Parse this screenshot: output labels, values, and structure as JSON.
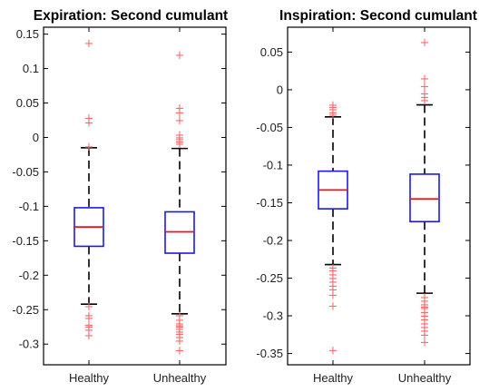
{
  "chart_data": [
    {
      "type": "boxplot",
      "title": "Expiration:  Second cumulant",
      "categories": [
        "Healthy",
        "Unhealthy"
      ],
      "ylim": [
        -0.33,
        0.16
      ],
      "yticks": [
        0.15,
        0.1,
        0.05,
        0,
        -0.05,
        -0.1,
        -0.15,
        -0.2,
        -0.25,
        -0.3
      ],
      "ytick_labels": [
        "0.15",
        "0.1",
        "0.05",
        "0",
        "-0.05",
        "-0.1",
        "-0.15",
        "-0.2",
        "-0.25",
        "-0.3"
      ],
      "grid": false,
      "boxes": [
        {
          "category": "Healthy",
          "whisker_high": -0.015,
          "q3": -0.102,
          "median": -0.13,
          "q1": -0.158,
          "whisker_low": -0.242,
          "outliers": [
            0.137,
            0.028,
            0.022,
            -0.013,
            -0.245,
            -0.258,
            -0.262,
            -0.272,
            -0.275,
            -0.279,
            -0.287
          ]
        },
        {
          "category": "Unhealthy",
          "whisker_high": -0.016,
          "q3": -0.108,
          "median": -0.137,
          "q1": -0.168,
          "whisker_low": -0.256,
          "outliers": [
            0.12,
            0.043,
            0.036,
            0.025,
            0.004,
            0.0,
            -0.003,
            -0.006,
            -0.009,
            -0.258,
            -0.265,
            -0.27,
            -0.273,
            -0.275,
            -0.278,
            -0.282,
            -0.285,
            -0.29,
            -0.295,
            -0.309
          ]
        }
      ],
      "colors": {
        "box": "#1a1ae6",
        "median": "#e8141e",
        "whisker": "#000000",
        "outlier": "#ff6b6b"
      }
    },
    {
      "type": "boxplot",
      "title": "Inspiration: Second cumulant",
      "categories": [
        "Healthy",
        "Unhealthy"
      ],
      "ylim": [
        -0.365,
        0.083
      ],
      "yticks": [
        0.05,
        0,
        -0.05,
        -0.1,
        -0.15,
        -0.2,
        -0.25,
        -0.3,
        -0.35
      ],
      "ytick_labels": [
        "0.05",
        "0",
        "-0.05",
        "-0.1",
        "-0.15",
        "-0.2",
        "-0.25",
        "-0.3",
        "-0.35"
      ],
      "grid": false,
      "boxes": [
        {
          "category": "Healthy",
          "whisker_high": -0.036,
          "q3": -0.108,
          "median": -0.133,
          "q1": -0.158,
          "whisker_low": -0.232,
          "outliers": [
            -0.02,
            -0.023,
            -0.026,
            -0.03,
            -0.033,
            -0.236,
            -0.24,
            -0.245,
            -0.25,
            -0.255,
            -0.26,
            -0.265,
            -0.272,
            -0.287,
            -0.346
          ]
        },
        {
          "category": "Unhealthy",
          "whisker_high": -0.02,
          "q3": -0.112,
          "median": -0.145,
          "q1": -0.175,
          "whisker_low": -0.27,
          "outliers": [
            0.063,
            0.015,
            0.005,
            -0.005,
            -0.01,
            -0.014,
            -0.275,
            -0.28,
            -0.285,
            -0.288,
            -0.29,
            -0.295,
            -0.3,
            -0.305,
            -0.31,
            -0.315,
            -0.32,
            -0.325,
            -0.335
          ]
        }
      ],
      "colors": {
        "box": "#1a1ae6",
        "median": "#e8141e",
        "whisker": "#000000",
        "outlier": "#ff6b6b"
      }
    }
  ]
}
